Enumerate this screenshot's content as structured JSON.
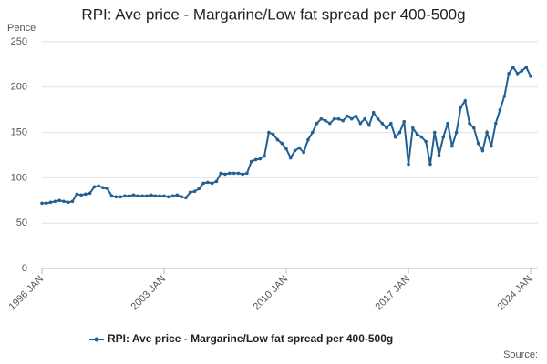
{
  "chart_data": {
    "type": "line",
    "title": "RPI: Ave price - Margarine/Low fat spread per 400-500g",
    "y_label": "Pence",
    "source": "Source:",
    "x": [
      1996,
      1996.25,
      1996.5,
      1996.75,
      1997,
      1997.25,
      1997.5,
      1997.75,
      1998,
      1998.25,
      1998.5,
      1998.75,
      1999,
      1999.25,
      1999.5,
      1999.75,
      2000,
      2000.25,
      2000.5,
      2000.75,
      2001,
      2001.25,
      2001.5,
      2001.75,
      2002,
      2002.25,
      2002.5,
      2002.75,
      2003,
      2003.25,
      2003.5,
      2003.75,
      2004,
      2004.25,
      2004.5,
      2004.75,
      2005,
      2005.25,
      2005.5,
      2005.75,
      2006,
      2006.25,
      2006.5,
      2006.75,
      2007,
      2007.25,
      2007.5,
      2007.75,
      2008,
      2008.25,
      2008.5,
      2008.75,
      2009,
      2009.25,
      2009.5,
      2009.75,
      2010,
      2010.25,
      2010.5,
      2010.75,
      2011,
      2011.25,
      2011.5,
      2011.75,
      2012,
      2012.25,
      2012.5,
      2012.75,
      2013,
      2013.25,
      2013.5,
      2013.75,
      2014,
      2014.25,
      2014.5,
      2014.75,
      2015,
      2015.25,
      2015.5,
      2015.75,
      2016,
      2016.25,
      2016.5,
      2016.75,
      2017,
      2017.25,
      2017.5,
      2017.75,
      2018,
      2018.25,
      2018.5,
      2018.75,
      2019,
      2019.25,
      2019.5,
      2019.75,
      2020,
      2020.25,
      2020.5,
      2020.75,
      2021,
      2021.25,
      2021.5,
      2021.75,
      2022,
      2022.25,
      2022.5,
      2022.75,
      2023,
      2023.25,
      2023.5,
      2023.75,
      2024
    ],
    "series": [
      {
        "name": "RPI: Ave price - Margarine/Low fat spread per 400-500g",
        "color": "#206095",
        "values": [
          72,
          72,
          73,
          74,
          75,
          74,
          73,
          74,
          82,
          81,
          82,
          83,
          90,
          91,
          89,
          88,
          80,
          79,
          79,
          80,
          80,
          81,
          80,
          80,
          80,
          81,
          80,
          80,
          80,
          79,
          80,
          81,
          79,
          78,
          84,
          85,
          88,
          94,
          95,
          94,
          96,
          105,
          104,
          105,
          105,
          105,
          104,
          105,
          118,
          120,
          121,
          124,
          150,
          148,
          142,
          138,
          132,
          122,
          130,
          133,
          128,
          142,
          150,
          160,
          165,
          163,
          160,
          165,
          165,
          163,
          168,
          165,
          168,
          160,
          165,
          158,
          172,
          165,
          160,
          155,
          160,
          145,
          150,
          162,
          115,
          155,
          148,
          145,
          140,
          115,
          150,
          125,
          145,
          160,
          135,
          150,
          178,
          185,
          160,
          155,
          138,
          130,
          150,
          135,
          160,
          175,
          190,
          215,
          222,
          215,
          218,
          222,
          212
        ]
      }
    ],
    "xlim": [
      1996,
      2024
    ],
    "xticks": [
      {
        "value": 1996,
        "label": "1996 JAN"
      },
      {
        "value": 2003,
        "label": "2003 JAN"
      },
      {
        "value": 2010,
        "label": "2010 JAN"
      },
      {
        "value": 2017,
        "label": "2017 JAN"
      },
      {
        "value": 2024,
        "label": "2024 JAN"
      }
    ],
    "ylim": [
      0,
      250
    ],
    "yticks": [
      0,
      50,
      100,
      150,
      200,
      250
    ],
    "grid": true
  }
}
